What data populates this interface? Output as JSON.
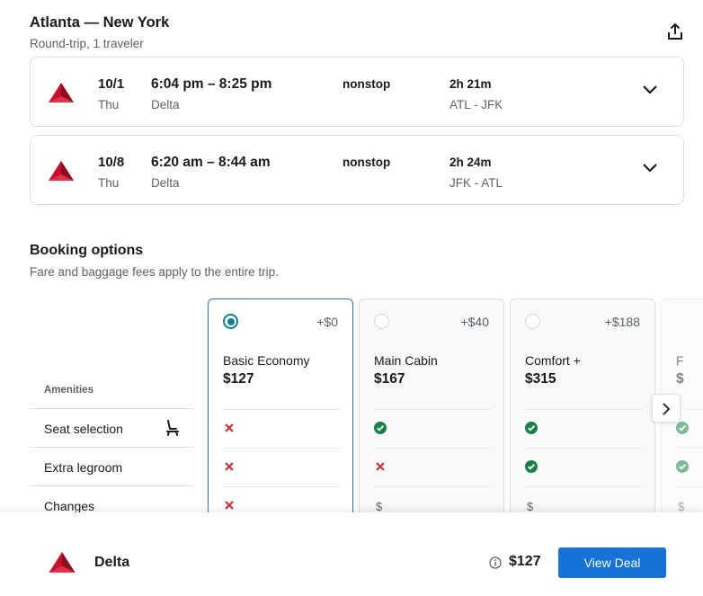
{
  "header": {
    "title": "Atlanta — New York",
    "subtitle": "Round-trip, 1 traveler",
    "share_icon": "share-icon"
  },
  "legs": [
    {
      "date": "10/1",
      "dow": "Thu",
      "times": "6:04 pm – 8:25 pm",
      "carrier": "Delta",
      "stops": "nonstop",
      "duration": "2h 21m",
      "route": "ATL - JFK"
    },
    {
      "date": "10/8",
      "dow": "Thu",
      "times": "6:20 am – 8:44 am",
      "carrier": "Delta",
      "stops": "nonstop",
      "duration": "2h 24m",
      "route": "JFK - ATL"
    }
  ],
  "booking": {
    "title": "Booking options",
    "subtitle": "Fare and baggage fees apply to the entire trip.",
    "amenities_header": "Amenities",
    "amenities": [
      "Seat selection",
      "Extra legroom",
      "Changes"
    ],
    "fares": [
      {
        "delta": "+$0",
        "name": "Basic Economy",
        "price": "$127",
        "selected": true,
        "cells": [
          "cross",
          "cross",
          "cross"
        ]
      },
      {
        "delta": "+$40",
        "name": "Main Cabin",
        "price": "$167",
        "selected": false,
        "cells": [
          "check",
          "cross",
          "$"
        ]
      },
      {
        "delta": "+$188",
        "name": "Comfort +",
        "price": "$315",
        "selected": false,
        "cells": [
          "check",
          "check",
          "$"
        ]
      },
      {
        "delta": "",
        "name": "F",
        "price": "$",
        "selected": false,
        "cells": [
          "check",
          "check",
          "$"
        ]
      }
    ]
  },
  "footer": {
    "airline": "Delta",
    "price": "$127",
    "button": "View Deal"
  },
  "colors": {
    "accent": "#1672d6",
    "check": "#1a8045",
    "cross": "#c8323c",
    "delta_red": "#c8102e"
  }
}
